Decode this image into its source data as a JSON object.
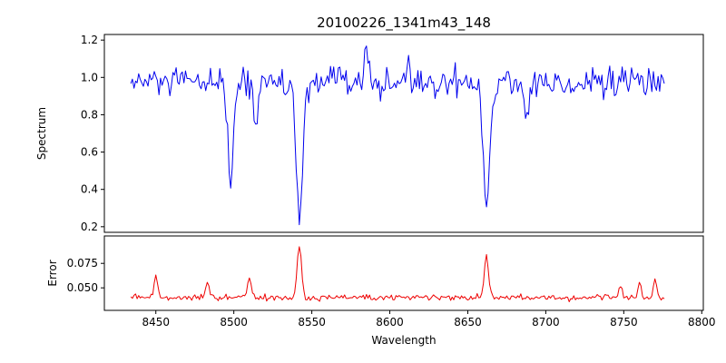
{
  "figure": {
    "background": "#ffffff"
  },
  "chart_data": {
    "type": "line",
    "title": "20100226_1341m43_148",
    "xlabel": "Wavelength",
    "grid": false,
    "legend": "none",
    "x_start": 8434,
    "x_end": 8776,
    "x_step": 1.0,
    "xlim": [
      8417,
      8801
    ],
    "xticks": [
      8450,
      8500,
      8550,
      8600,
      8650,
      8700,
      8750,
      8800
    ],
    "panels": [
      {
        "name": "spectrum",
        "ylabel": "Spectrum",
        "line_color": "#0000ee",
        "ylim": [
          0.17,
          1.23
        ],
        "yticks": [
          0.2,
          0.4,
          0.6,
          0.8,
          1.0,
          1.2
        ],
        "ytick_decimals": 1,
        "baseline": 0.97,
        "noise_sigma": 0.042,
        "noise_seed": 12345,
        "features": [
          {
            "center": 8498,
            "amplitude": -0.52,
            "width": 1.8
          },
          {
            "center": 8514,
            "amplitude": -0.2,
            "width": 1.4
          },
          {
            "center": 8542,
            "amplitude": -0.75,
            "width": 2.2
          },
          {
            "center": 8585,
            "amplitude": 0.2,
            "width": 0.9
          },
          {
            "center": 8612,
            "amplitude": 0.14,
            "width": 0.8
          },
          {
            "center": 8662,
            "amplitude": -0.66,
            "width": 2.0
          },
          {
            "center": 8688,
            "amplitude": -0.21,
            "width": 1.4
          }
        ]
      },
      {
        "name": "error",
        "ylabel": "Error",
        "line_color": "#ee0000",
        "ylim": [
          0.027,
          0.103
        ],
        "yticks": [
          0.05,
          0.075
        ],
        "ytick_decimals": 3,
        "baseline": 0.04,
        "noise_sigma": 0.0016,
        "noise_seed": 99,
        "features": [
          {
            "center": 8450,
            "amplitude": 0.023,
            "width": 1.2
          },
          {
            "center": 8483,
            "amplitude": 0.016,
            "width": 1.0
          },
          {
            "center": 8510,
            "amplitude": 0.02,
            "width": 1.2
          },
          {
            "center": 8542,
            "amplitude": 0.054,
            "width": 1.4
          },
          {
            "center": 8662,
            "amplitude": 0.041,
            "width": 1.4
          },
          {
            "center": 8748,
            "amplitude": 0.012,
            "width": 1.0
          },
          {
            "center": 8760,
            "amplitude": 0.016,
            "width": 1.0
          },
          {
            "center": 8770,
            "amplitude": 0.019,
            "width": 1.0
          }
        ]
      }
    ]
  }
}
